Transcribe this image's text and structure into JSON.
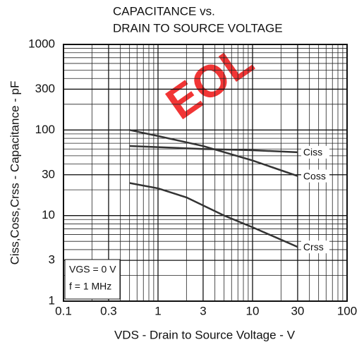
{
  "chart_data": {
    "type": "line",
    "title_lines": [
      "CAPACITANCE vs.",
      "DRAIN TO SOURCE VOLTAGE"
    ],
    "x_label": "VDS - Drain to Source Voltage - V",
    "y_label": "Ciss,Coss,Crss - Capacitance - pF",
    "annotations": [
      "VGS = 0 V",
      "f = 1 MHz"
    ],
    "watermark": "EOL",
    "log_x": true,
    "log_y": true,
    "grid": true,
    "minor_grid": true,
    "xlim": [
      0.1,
      100
    ],
    "xticks": [
      0.1,
      0.3,
      1,
      3,
      10,
      30,
      100
    ],
    "ylim": [
      1,
      1000
    ],
    "yticks": [
      1,
      3,
      10,
      30,
      100,
      300,
      1000
    ],
    "series": [
      {
        "name": "Ciss",
        "color": "#333333",
        "x": [
          0.5,
          1,
          3,
          10,
          30
        ],
        "values": [
          65,
          63,
          60,
          58,
          55
        ]
      },
      {
        "name": "Coss",
        "color": "#333333",
        "x": [
          0.5,
          1,
          3,
          10,
          30
        ],
        "values": [
          100,
          85,
          65,
          44,
          29
        ]
      },
      {
        "name": "Crss",
        "color": "#333333",
        "x": [
          0.5,
          1,
          2,
          5,
          10,
          30
        ],
        "values": [
          24,
          20.8,
          16.3,
          10,
          7.3,
          4.3
        ]
      }
    ]
  }
}
